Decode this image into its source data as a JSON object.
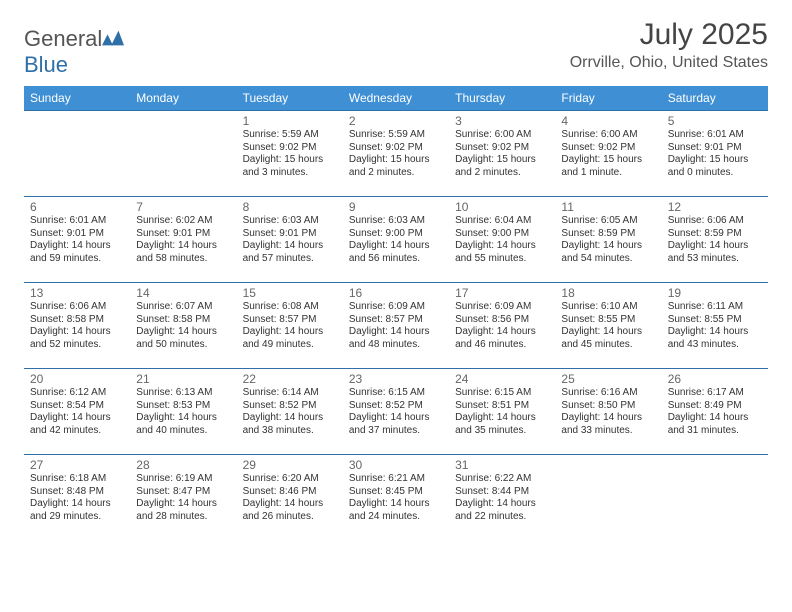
{
  "brand": {
    "name_a": "General",
    "name_b": "Blue"
  },
  "header": {
    "month_title": "July 2025",
    "location": "Orrville, Ohio, United States"
  },
  "colors": {
    "header_bg": "#3f8fd4",
    "header_fg": "#ffffff",
    "rule": "#2f6fa7",
    "text": "#333333",
    "muted": "#666666",
    "logo_blue": "#2f6fa7"
  },
  "weekdays": [
    "Sunday",
    "Monday",
    "Tuesday",
    "Wednesday",
    "Thursday",
    "Friday",
    "Saturday"
  ],
  "weeks": [
    [
      null,
      null,
      {
        "d": "1",
        "sr": "5:59 AM",
        "ss": "9:02 PM",
        "dl": "15 hours and 3 minutes."
      },
      {
        "d": "2",
        "sr": "5:59 AM",
        "ss": "9:02 PM",
        "dl": "15 hours and 2 minutes."
      },
      {
        "d": "3",
        "sr": "6:00 AM",
        "ss": "9:02 PM",
        "dl": "15 hours and 2 minutes."
      },
      {
        "d": "4",
        "sr": "6:00 AM",
        "ss": "9:02 PM",
        "dl": "15 hours and 1 minute."
      },
      {
        "d": "5",
        "sr": "6:01 AM",
        "ss": "9:01 PM",
        "dl": "15 hours and 0 minutes."
      }
    ],
    [
      {
        "d": "6",
        "sr": "6:01 AM",
        "ss": "9:01 PM",
        "dl": "14 hours and 59 minutes."
      },
      {
        "d": "7",
        "sr": "6:02 AM",
        "ss": "9:01 PM",
        "dl": "14 hours and 58 minutes."
      },
      {
        "d": "8",
        "sr": "6:03 AM",
        "ss": "9:01 PM",
        "dl": "14 hours and 57 minutes."
      },
      {
        "d": "9",
        "sr": "6:03 AM",
        "ss": "9:00 PM",
        "dl": "14 hours and 56 minutes."
      },
      {
        "d": "10",
        "sr": "6:04 AM",
        "ss": "9:00 PM",
        "dl": "14 hours and 55 minutes."
      },
      {
        "d": "11",
        "sr": "6:05 AM",
        "ss": "8:59 PM",
        "dl": "14 hours and 54 minutes."
      },
      {
        "d": "12",
        "sr": "6:06 AM",
        "ss": "8:59 PM",
        "dl": "14 hours and 53 minutes."
      }
    ],
    [
      {
        "d": "13",
        "sr": "6:06 AM",
        "ss": "8:58 PM",
        "dl": "14 hours and 52 minutes."
      },
      {
        "d": "14",
        "sr": "6:07 AM",
        "ss": "8:58 PM",
        "dl": "14 hours and 50 minutes."
      },
      {
        "d": "15",
        "sr": "6:08 AM",
        "ss": "8:57 PM",
        "dl": "14 hours and 49 minutes."
      },
      {
        "d": "16",
        "sr": "6:09 AM",
        "ss": "8:57 PM",
        "dl": "14 hours and 48 minutes."
      },
      {
        "d": "17",
        "sr": "6:09 AM",
        "ss": "8:56 PM",
        "dl": "14 hours and 46 minutes."
      },
      {
        "d": "18",
        "sr": "6:10 AM",
        "ss": "8:55 PM",
        "dl": "14 hours and 45 minutes."
      },
      {
        "d": "19",
        "sr": "6:11 AM",
        "ss": "8:55 PM",
        "dl": "14 hours and 43 minutes."
      }
    ],
    [
      {
        "d": "20",
        "sr": "6:12 AM",
        "ss": "8:54 PM",
        "dl": "14 hours and 42 minutes."
      },
      {
        "d": "21",
        "sr": "6:13 AM",
        "ss": "8:53 PM",
        "dl": "14 hours and 40 minutes."
      },
      {
        "d": "22",
        "sr": "6:14 AM",
        "ss": "8:52 PM",
        "dl": "14 hours and 38 minutes."
      },
      {
        "d": "23",
        "sr": "6:15 AM",
        "ss": "8:52 PM",
        "dl": "14 hours and 37 minutes."
      },
      {
        "d": "24",
        "sr": "6:15 AM",
        "ss": "8:51 PM",
        "dl": "14 hours and 35 minutes."
      },
      {
        "d": "25",
        "sr": "6:16 AM",
        "ss": "8:50 PM",
        "dl": "14 hours and 33 minutes."
      },
      {
        "d": "26",
        "sr": "6:17 AM",
        "ss": "8:49 PM",
        "dl": "14 hours and 31 minutes."
      }
    ],
    [
      {
        "d": "27",
        "sr": "6:18 AM",
        "ss": "8:48 PM",
        "dl": "14 hours and 29 minutes."
      },
      {
        "d": "28",
        "sr": "6:19 AM",
        "ss": "8:47 PM",
        "dl": "14 hours and 28 minutes."
      },
      {
        "d": "29",
        "sr": "6:20 AM",
        "ss": "8:46 PM",
        "dl": "14 hours and 26 minutes."
      },
      {
        "d": "30",
        "sr": "6:21 AM",
        "ss": "8:45 PM",
        "dl": "14 hours and 24 minutes."
      },
      {
        "d": "31",
        "sr": "6:22 AM",
        "ss": "8:44 PM",
        "dl": "14 hours and 22 minutes."
      },
      null,
      null
    ]
  ]
}
